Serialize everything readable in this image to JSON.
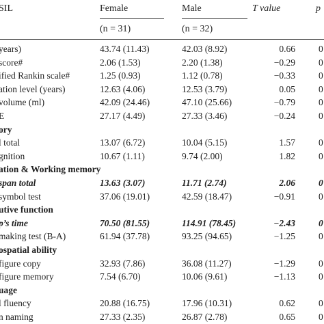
{
  "header": {
    "col_label": "SIL",
    "female": "Female",
    "male": "Male",
    "t_value": "T value",
    "p": "p",
    "female_n": "(n = 31)",
    "male_n": "(n = 32)"
  },
  "rows": [
    {
      "label": "years)",
      "female": "43.74 (11.43)",
      "male": "42.03 (8.92)",
      "t": "0.66",
      "p": "0",
      "style": ""
    },
    {
      "label": "score#",
      "female": "2.06 (1.53)",
      "male": "2.20 (1.38)",
      "t": "−0.29",
      "p": "0",
      "style": ""
    },
    {
      "label": "ified Rankin scale#",
      "female": "1.25 (0.93)",
      "male": "1.12 (0.78)",
      "t": "−0.33",
      "p": "0",
      "style": ""
    },
    {
      "label": "ation level (years)",
      "female": "12.63 (4.06)",
      "male": "12.53 (3.79)",
      "t": "0.05",
      "p": "0",
      "style": ""
    },
    {
      "label": "volume (ml)",
      "female": "42.09 (24.46)",
      "male": "47.10 (25.66)",
      "t": "−0.79",
      "p": "0",
      "style": ""
    },
    {
      "label": "E",
      "female": "27.17 (4.49)",
      "male": "27.33 (3.46)",
      "t": "−0.24",
      "p": "0",
      "style": ""
    },
    {
      "label": "ory",
      "female": "",
      "male": "",
      "t": "",
      "p": "",
      "style": "sec"
    },
    {
      "label": "l total",
      "female": "13.07 (6.72)",
      "male": "10.04 (5.15)",
      "t": "1.57",
      "p": "0",
      "style": ""
    },
    {
      "label": "gnition",
      "female": "10.67 (1.11)",
      "male": "9.74 (2.00)",
      "t": "1.82",
      "p": "0",
      "style": ""
    },
    {
      "label": "ation & Working memory",
      "female": "",
      "male": "",
      "t": "",
      "p": "",
      "style": "sec"
    },
    {
      "label": "span total",
      "female": "13.63 (3.07)",
      "male": "11.71 (2.74)",
      "t": "2.06",
      "p": "0",
      "style": "bi"
    },
    {
      "label": "symbol test",
      "female": "37.06 (19.01)",
      "male": "42.59 (18.47)",
      "t": "−0.91",
      "p": "0",
      "style": ""
    },
    {
      "label": "utive function",
      "female": "",
      "male": "",
      "t": "",
      "p": "",
      "style": "sec"
    },
    {
      "label": "p’s time",
      "female": "70.50 (81.55)",
      "male": "114.91 (78.45)",
      "t": "−2.43",
      "p": "0",
      "style": "bi"
    },
    {
      "label": "making test (B-A)",
      "female": "61.94 (37.78)",
      "male": "93.25 (94.65)",
      "t": "−1.25",
      "p": "0",
      "style": ""
    },
    {
      "label": "ospatial ability",
      "female": "",
      "male": "",
      "t": "",
      "p": "",
      "style": "sec"
    },
    {
      "label": "figure copy",
      "female": "32.93 (7.86)",
      "male": "36.08 (11.27)",
      "t": "−1.29",
      "p": "0",
      "style": ""
    },
    {
      "label": "figure memory",
      "female": "7.54 (6.70)",
      "male": "10.06 (9.61)",
      "t": "−1.13",
      "p": "0",
      "style": ""
    },
    {
      "label": "uage",
      "female": "",
      "male": "",
      "t": "",
      "p": "",
      "style": "sec"
    },
    {
      "label": "l fluency",
      "female": "20.88 (16.75)",
      "male": "17.96 (10.31)",
      "t": "0.62",
      "p": "0",
      "style": ""
    },
    {
      "label": "n naming",
      "female": "27.33 (2.35)",
      "male": "26.87 (2.78)",
      "t": "0.65",
      "p": "0",
      "style": ""
    }
  ]
}
